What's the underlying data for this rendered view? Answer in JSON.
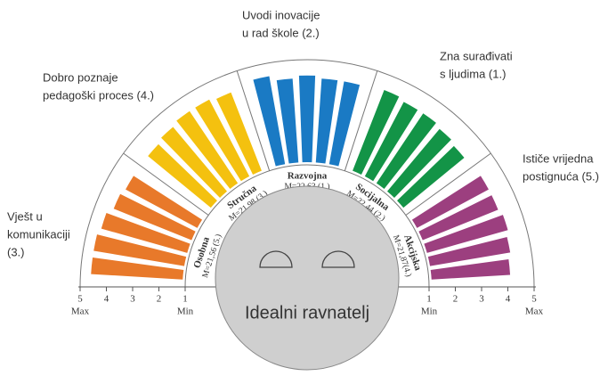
{
  "chart_data": {
    "type": "radial_bar",
    "center_label": "Idealni ravnatelj",
    "rlim": [
      1,
      5
    ],
    "rticks": [
      1,
      2,
      3,
      4,
      5
    ],
    "axis_min_label": "Min",
    "axis_max_label": "Max",
    "sectors": [
      {
        "name": "Osobna",
        "mean": "M=21,56 (5.)",
        "color": "#e8792a",
        "label": [
          "Vješt u",
          "komunikaciji",
          "(3.)"
        ],
        "values": [
          4.6,
          4.6,
          4.5,
          4.3,
          4.2
        ]
      },
      {
        "name": "Stručna",
        "mean": "M=21,98 (3.)",
        "color": "#f4c10f",
        "label": [
          "Dobro poznaje",
          "pedagoški proces (4.)"
        ],
        "values": [
          4.2,
          4.3,
          4.4,
          4.4,
          4.3
        ]
      },
      {
        "name": "Razvojna",
        "mean": "M=22,63 (1.)",
        "color": "#1a7ac4",
        "label": [
          "Uvodi inovacije",
          "u rad škole (2.)"
        ],
        "values": [
          4.5,
          4.3,
          4.4,
          4.3,
          4.3
        ]
      },
      {
        "name": "Socijalna",
        "mean": "M=22,44 (2.)",
        "color": "#139447",
        "label": [
          "Zna surađivati",
          "s ljudima (1.)"
        ],
        "values": [
          4.4,
          4.3,
          4.3,
          4.2,
          4.1
        ]
      },
      {
        "name": "Akcijska",
        "mean": "M=21,87(4.)",
        "color": "#9c3f7f",
        "label": [
          "Ističe vrijedna",
          "postignuća (5.)"
        ],
        "values": [
          4.2,
          4.2,
          4.3,
          4.2,
          4.1
        ]
      }
    ]
  }
}
